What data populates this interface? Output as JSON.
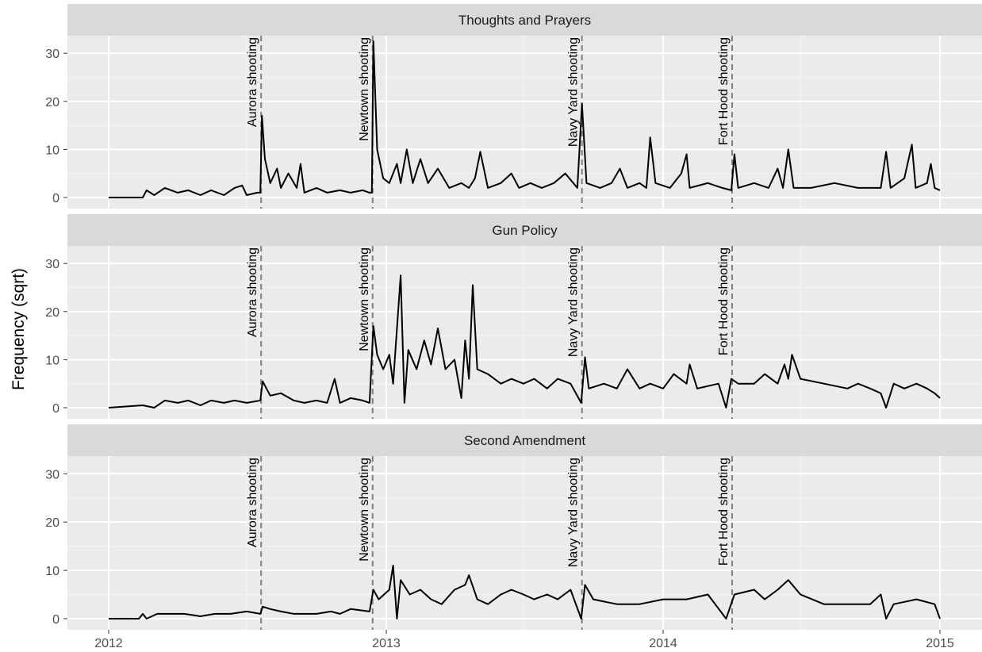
{
  "chart_data": {
    "type": "line",
    "ylabel": "Frequency (sqrt)",
    "xlabel": "",
    "x_range": [
      "2012-01-01",
      "2015-01-01"
    ],
    "x_ticks": [
      "2012",
      "2013",
      "2014",
      "2015"
    ],
    "y_range": [
      0,
      33
    ],
    "y_ticks": [
      0,
      10,
      20,
      30
    ],
    "grid": true,
    "events": [
      {
        "label": "Aurora shooting",
        "date": "2012-07-20"
      },
      {
        "label": "Newtown shooting",
        "date": "2012-12-14"
      },
      {
        "label": "Navy Yard shooting",
        "date": "2013-09-16"
      },
      {
        "label": "Fort Hood shooting",
        "date": "2014-04-02"
      }
    ],
    "panels": [
      {
        "title": "Thoughts and Prayers",
        "points": [
          [
            "2012-01-01",
            0
          ],
          [
            "2012-02-15",
            0
          ],
          [
            "2012-02-20",
            1.5
          ],
          [
            "2012-03-01",
            0.5
          ],
          [
            "2012-03-15",
            2
          ],
          [
            "2012-04-01",
            1
          ],
          [
            "2012-04-15",
            1.5
          ],
          [
            "2012-05-01",
            0.5
          ],
          [
            "2012-05-15",
            1.5
          ],
          [
            "2012-06-01",
            0.5
          ],
          [
            "2012-06-15",
            2
          ],
          [
            "2012-06-25",
            2.5
          ],
          [
            "2012-07-01",
            0.5
          ],
          [
            "2012-07-15",
            1
          ],
          [
            "2012-07-19",
            1
          ],
          [
            "2012-07-21",
            17
          ],
          [
            "2012-07-25",
            8
          ],
          [
            "2012-08-01",
            3
          ],
          [
            "2012-08-10",
            6
          ],
          [
            "2012-08-15",
            2
          ],
          [
            "2012-08-25",
            5
          ],
          [
            "2012-09-05",
            2
          ],
          [
            "2012-09-10",
            7
          ],
          [
            "2012-09-15",
            1
          ],
          [
            "2012-10-01",
            2
          ],
          [
            "2012-10-15",
            1
          ],
          [
            "2012-11-01",
            1.5
          ],
          [
            "2012-11-15",
            1
          ],
          [
            "2012-12-01",
            1.5
          ],
          [
            "2012-12-10",
            1
          ],
          [
            "2012-12-13",
            1
          ],
          [
            "2012-12-15",
            32.5
          ],
          [
            "2012-12-20",
            10
          ],
          [
            "2012-12-28",
            4
          ],
          [
            "2013-01-05",
            3
          ],
          [
            "2013-01-15",
            7
          ],
          [
            "2013-01-20",
            3
          ],
          [
            "2013-01-28",
            10
          ],
          [
            "2013-02-05",
            3
          ],
          [
            "2013-02-15",
            8
          ],
          [
            "2013-02-25",
            3
          ],
          [
            "2013-03-10",
            6
          ],
          [
            "2013-03-25",
            2
          ],
          [
            "2013-04-10",
            3
          ],
          [
            "2013-04-20",
            2
          ],
          [
            "2013-04-28",
            4
          ],
          [
            "2013-05-05",
            9.5
          ],
          [
            "2013-05-15",
            2
          ],
          [
            "2013-06-01",
            3
          ],
          [
            "2013-06-15",
            5
          ],
          [
            "2013-06-25",
            2
          ],
          [
            "2013-07-10",
            3
          ],
          [
            "2013-07-25",
            2
          ],
          [
            "2013-08-10",
            3
          ],
          [
            "2013-08-25",
            5
          ],
          [
            "2013-09-10",
            2
          ],
          [
            "2013-09-16",
            19.5
          ],
          [
            "2013-09-22",
            3
          ],
          [
            "2013-10-10",
            2
          ],
          [
            "2013-10-25",
            3
          ],
          [
            "2013-11-05",
            6
          ],
          [
            "2013-11-15",
            2
          ],
          [
            "2013-12-01",
            3
          ],
          [
            "2013-12-10",
            2
          ],
          [
            "2013-12-15",
            12.5
          ],
          [
            "2013-12-22",
            3
          ],
          [
            "2014-01-10",
            2
          ],
          [
            "2014-01-25",
            5
          ],
          [
            "2014-02-01",
            9
          ],
          [
            "2014-02-05",
            2
          ],
          [
            "2014-03-01",
            3
          ],
          [
            "2014-03-20",
            2
          ],
          [
            "2014-04-01",
            1.5
          ],
          [
            "2014-04-05",
            9
          ],
          [
            "2014-04-10",
            2
          ],
          [
            "2014-05-01",
            3
          ],
          [
            "2014-05-20",
            2
          ],
          [
            "2014-06-01",
            6
          ],
          [
            "2014-06-08",
            2
          ],
          [
            "2014-06-15",
            10
          ],
          [
            "2014-06-22",
            2
          ],
          [
            "2014-07-15",
            2
          ],
          [
            "2014-08-15",
            3
          ],
          [
            "2014-09-15",
            2
          ],
          [
            "2014-10-15",
            2
          ],
          [
            "2014-10-22",
            9.5
          ],
          [
            "2014-10-28",
            2
          ],
          [
            "2014-11-15",
            4
          ],
          [
            "2014-11-25",
            11
          ],
          [
            "2014-11-30",
            2
          ],
          [
            "2014-12-15",
            3
          ],
          [
            "2014-12-20",
            7
          ],
          [
            "2014-12-25",
            2
          ],
          [
            "2015-01-01",
            1.5
          ]
        ]
      },
      {
        "title": "Gun Policy",
        "points": [
          [
            "2012-01-01",
            0
          ],
          [
            "2012-02-15",
            0.5
          ],
          [
            "2012-03-01",
            0
          ],
          [
            "2012-03-15",
            1.5
          ],
          [
            "2012-04-01",
            1
          ],
          [
            "2012-04-15",
            1.5
          ],
          [
            "2012-05-01",
            0.5
          ],
          [
            "2012-05-15",
            1.5
          ],
          [
            "2012-06-01",
            1
          ],
          [
            "2012-06-15",
            1.5
          ],
          [
            "2012-07-01",
            1
          ],
          [
            "2012-07-19",
            1.5
          ],
          [
            "2012-07-22",
            5.5
          ],
          [
            "2012-08-01",
            2.5
          ],
          [
            "2012-08-15",
            3
          ],
          [
            "2012-09-01",
            1.5
          ],
          [
            "2012-09-15",
            1
          ],
          [
            "2012-10-01",
            1.5
          ],
          [
            "2012-10-15",
            1
          ],
          [
            "2012-10-25",
            6
          ],
          [
            "2012-11-01",
            1
          ],
          [
            "2012-11-15",
            2
          ],
          [
            "2012-12-01",
            1.5
          ],
          [
            "2012-12-10",
            1
          ],
          [
            "2012-12-15",
            17
          ],
          [
            "2012-12-20",
            11
          ],
          [
            "2012-12-28",
            8
          ],
          [
            "2013-01-05",
            11
          ],
          [
            "2013-01-10",
            5
          ],
          [
            "2013-01-20",
            27.5
          ],
          [
            "2013-01-25",
            1
          ],
          [
            "2013-01-30",
            12
          ],
          [
            "2013-02-10",
            8
          ],
          [
            "2013-02-20",
            14
          ],
          [
            "2013-03-01",
            9
          ],
          [
            "2013-03-10",
            16.5
          ],
          [
            "2013-03-20",
            8
          ],
          [
            "2013-04-01",
            10
          ],
          [
            "2013-04-10",
            2
          ],
          [
            "2013-04-15",
            14
          ],
          [
            "2013-04-20",
            6
          ],
          [
            "2013-04-25",
            25.5
          ],
          [
            "2013-05-01",
            8
          ],
          [
            "2013-05-15",
            7
          ],
          [
            "2013-06-01",
            5
          ],
          [
            "2013-06-15",
            6
          ],
          [
            "2013-07-01",
            5
          ],
          [
            "2013-07-15",
            6
          ],
          [
            "2013-08-01",
            4
          ],
          [
            "2013-08-15",
            6
          ],
          [
            "2013-09-01",
            5
          ],
          [
            "2013-09-15",
            1
          ],
          [
            "2013-09-20",
            10.5
          ],
          [
            "2013-09-25",
            4
          ],
          [
            "2013-10-15",
            5
          ],
          [
            "2013-11-01",
            4
          ],
          [
            "2013-11-15",
            8
          ],
          [
            "2013-12-01",
            4
          ],
          [
            "2013-12-15",
            5
          ],
          [
            "2014-01-01",
            4
          ],
          [
            "2014-01-15",
            7
          ],
          [
            "2014-02-01",
            5
          ],
          [
            "2014-02-05",
            9
          ],
          [
            "2014-02-15",
            4
          ],
          [
            "2014-03-15",
            5
          ],
          [
            "2014-03-25",
            0
          ],
          [
            "2014-04-01",
            6
          ],
          [
            "2014-04-10",
            5
          ],
          [
            "2014-05-01",
            5
          ],
          [
            "2014-05-15",
            7
          ],
          [
            "2014-06-01",
            5
          ],
          [
            "2014-06-10",
            9
          ],
          [
            "2014-06-15",
            6
          ],
          [
            "2014-06-20",
            11
          ],
          [
            "2014-07-01",
            6
          ],
          [
            "2014-08-01",
            5
          ],
          [
            "2014-09-01",
            4
          ],
          [
            "2014-09-15",
            5
          ],
          [
            "2014-10-01",
            4
          ],
          [
            "2014-10-15",
            3
          ],
          [
            "2014-10-22",
            0
          ],
          [
            "2014-11-01",
            5
          ],
          [
            "2014-11-15",
            4
          ],
          [
            "2014-12-01",
            5
          ],
          [
            "2014-12-15",
            4
          ],
          [
            "2014-12-25",
            3
          ],
          [
            "2015-01-01",
            2
          ]
        ]
      },
      {
        "title": "Second Amendment",
        "points": [
          [
            "2012-01-01",
            0
          ],
          [
            "2012-02-10",
            0
          ],
          [
            "2012-02-15",
            1
          ],
          [
            "2012-02-20",
            0
          ],
          [
            "2012-03-05",
            1
          ],
          [
            "2012-03-20",
            1
          ],
          [
            "2012-04-10",
            1
          ],
          [
            "2012-05-01",
            0.5
          ],
          [
            "2012-05-20",
            1
          ],
          [
            "2012-06-10",
            1
          ],
          [
            "2012-07-01",
            1.5
          ],
          [
            "2012-07-19",
            1
          ],
          [
            "2012-07-22",
            2.5
          ],
          [
            "2012-08-01",
            2
          ],
          [
            "2012-08-15",
            1.5
          ],
          [
            "2012-09-01",
            1
          ],
          [
            "2012-10-01",
            1
          ],
          [
            "2012-10-20",
            1.5
          ],
          [
            "2012-11-01",
            1
          ],
          [
            "2012-11-15",
            2
          ],
          [
            "2012-12-10",
            1.5
          ],
          [
            "2012-12-15",
            6
          ],
          [
            "2012-12-22",
            4
          ],
          [
            "2013-01-05",
            6
          ],
          [
            "2013-01-10",
            11
          ],
          [
            "2013-01-15",
            0
          ],
          [
            "2013-01-20",
            8
          ],
          [
            "2013-02-01",
            5
          ],
          [
            "2013-02-15",
            6
          ],
          [
            "2013-03-01",
            4
          ],
          [
            "2013-03-15",
            3
          ],
          [
            "2013-04-01",
            6
          ],
          [
            "2013-04-15",
            7
          ],
          [
            "2013-04-20",
            9
          ],
          [
            "2013-05-01",
            4
          ],
          [
            "2013-05-15",
            3
          ],
          [
            "2013-06-01",
            5
          ],
          [
            "2013-06-15",
            6
          ],
          [
            "2013-07-01",
            5
          ],
          [
            "2013-07-15",
            4
          ],
          [
            "2013-08-01",
            5
          ],
          [
            "2013-08-15",
            4
          ],
          [
            "2013-09-01",
            6
          ],
          [
            "2013-09-15",
            0
          ],
          [
            "2013-09-20",
            7
          ],
          [
            "2013-10-01",
            4
          ],
          [
            "2013-11-01",
            3
          ],
          [
            "2013-12-01",
            3
          ],
          [
            "2014-01-01",
            4
          ],
          [
            "2014-02-01",
            4
          ],
          [
            "2014-03-01",
            5
          ],
          [
            "2014-03-25",
            0
          ],
          [
            "2014-04-05",
            5
          ],
          [
            "2014-05-01",
            6
          ],
          [
            "2014-05-15",
            4
          ],
          [
            "2014-06-01",
            6
          ],
          [
            "2014-06-15",
            8
          ],
          [
            "2014-07-01",
            5
          ],
          [
            "2014-08-01",
            3
          ],
          [
            "2014-09-01",
            3
          ],
          [
            "2014-10-01",
            3
          ],
          [
            "2014-10-15",
            5
          ],
          [
            "2014-10-22",
            0
          ],
          [
            "2014-11-01",
            3
          ],
          [
            "2014-12-01",
            4
          ],
          [
            "2014-12-25",
            3
          ],
          [
            "2015-01-01",
            0
          ]
        ]
      }
    ]
  }
}
